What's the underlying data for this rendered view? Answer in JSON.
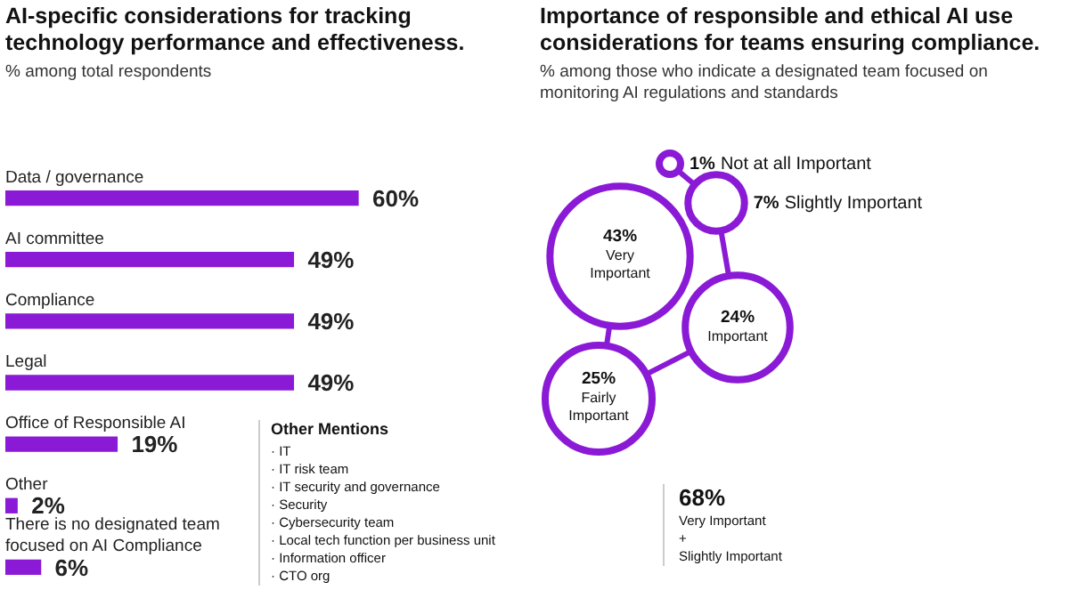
{
  "chart_data": [
    {
      "type": "bar",
      "orientation": "horizontal",
      "title": "AI-specific considerations for tracking technology performance and effectiveness.",
      "subtitle": "% among total respondents",
      "categories": [
        "Data / governance",
        "AI committee",
        "Compliance",
        "Legal",
        "Office of Responsible AI",
        "Other",
        "There is no designated team focused on AI Compliance"
      ],
      "values": [
        60,
        49,
        49,
        49,
        19,
        2,
        6
      ],
      "value_labels": [
        "60%",
        "49%",
        "49%",
        "49%",
        "19%",
        "2%",
        "6%"
      ],
      "color": "#8a1ad6",
      "annotations": [
        "Other Mentions",
        "· IT",
        "· IT risk team",
        "· IT security and governance",
        "· Security",
        "· Cybersecurity team",
        "· Local tech function per business unit",
        "· Information officer",
        "· CTO org"
      ]
    },
    {
      "type": "other",
      "title": "Importance of responsible and ethical AI use considerations for teams ensuring compliance.",
      "subtitle": "% among those who indicate a designated team focused on monitoring AI regulations and standards",
      "categories": [
        "Very Important",
        "Important",
        "Fairly Important",
        "Slightly Important",
        "Not at all Important"
      ],
      "values": [
        43,
        24,
        25,
        7,
        1
      ],
      "value_labels": [
        "43%",
        "24%",
        "25%",
        "7%",
        "1%"
      ],
      "colors": [
        "#8a1ad6",
        "#8a1ad6",
        "#8a1ad6",
        "#8a1ad6",
        "#8a1ad6"
      ],
      "annotations": [
        "68%\nVery Important\n+\nSlightly Important"
      ]
    }
  ]
}
